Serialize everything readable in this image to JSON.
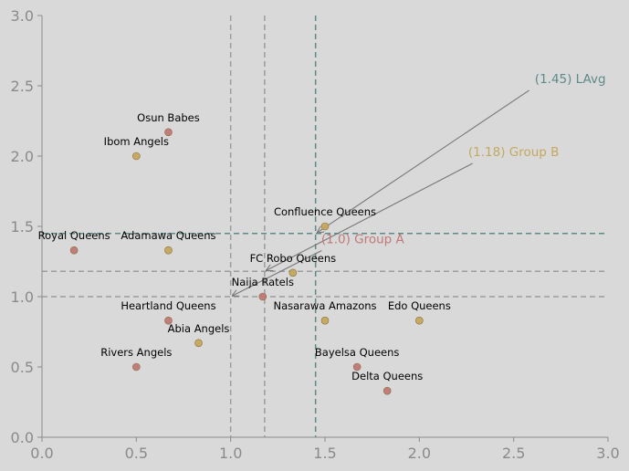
{
  "chart_data": {
    "type": "scatter",
    "title": "",
    "xlabel": "",
    "ylabel": "",
    "xlim": [
      0,
      3
    ],
    "ylim": [
      0,
      3
    ],
    "x_ticks": [
      "0.0",
      "0.5",
      "1.0",
      "1.5",
      "2.0",
      "2.5",
      "3.0"
    ],
    "y_ticks": [
      "0.0",
      "0.5",
      "1.0",
      "1.5",
      "2.0",
      "2.5",
      "3.0"
    ],
    "grid": false,
    "colors": {
      "group_a": "#c07878",
      "group_b": "#c4a85e",
      "lavg": "#5e8a88",
      "neutral_line": "#9c9c9c",
      "background": "#d9d9d9",
      "axis": "#8a8a8a"
    },
    "points": [
      {
        "label": "Osun Babes",
        "x": 0.67,
        "y": 2.17,
        "group": "group_a"
      },
      {
        "label": "Ibom Angels",
        "x": 0.5,
        "y": 2.0,
        "group": "group_b"
      },
      {
        "label": "Royal Queens",
        "x": 0.17,
        "y": 1.33,
        "group": "group_a"
      },
      {
        "label": "Adamawa Queens",
        "x": 0.67,
        "y": 1.33,
        "group": "group_b"
      },
      {
        "label": "Confluence Queens",
        "x": 1.5,
        "y": 1.5,
        "group": "group_b"
      },
      {
        "label": "FC Robo Queens",
        "x": 1.33,
        "y": 1.17,
        "group": "group_b"
      },
      {
        "label": "Naija Ratels",
        "x": 1.17,
        "y": 1.0,
        "group": "group_a"
      },
      {
        "label": "Heartland Queens",
        "x": 0.67,
        "y": 0.83,
        "group": "group_a"
      },
      {
        "label": "Nasarawa Amazons",
        "x": 1.5,
        "y": 0.83,
        "group": "group_b"
      },
      {
        "label": "Edo Queens",
        "x": 2.0,
        "y": 0.83,
        "group": "group_b"
      },
      {
        "label": "Abia Angels",
        "x": 0.83,
        "y": 0.67,
        "group": "group_b"
      },
      {
        "label": "Rivers Angels",
        "x": 0.5,
        "y": 0.5,
        "group": "group_a"
      },
      {
        "label": "Bayelsa Queens",
        "x": 1.67,
        "y": 0.5,
        "group": "group_a"
      },
      {
        "label": "Delta Queens",
        "x": 1.83,
        "y": 0.33,
        "group": "group_a"
      }
    ],
    "reference_lines": [
      {
        "value": 1.0,
        "label": "(1.0) Group A",
        "group": "group_a",
        "label_x": 1.7,
        "label_y": 1.38
      },
      {
        "value": 1.18,
        "label": "(1.18) Group B",
        "group": "group_b",
        "label_x": 2.5,
        "label_y": 2.0
      },
      {
        "value": 1.45,
        "label": "(1.45) LAvg",
        "group": "lavg",
        "label_x": 2.8,
        "label_y": 2.52
      }
    ]
  }
}
